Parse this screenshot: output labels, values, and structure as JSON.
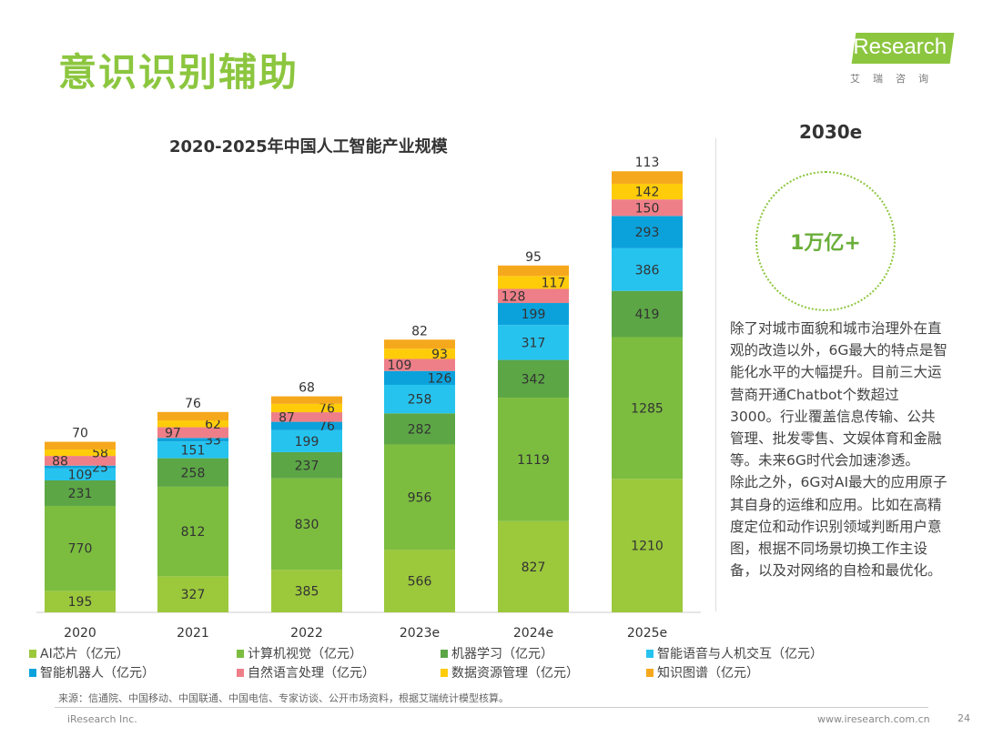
{
  "page": {
    "title": "意识识别辅助",
    "logo_text": "iResearch",
    "logo_sub": "艾瑞咨询",
    "forecast_year": "2030e",
    "forecast_value": "1万亿+",
    "paragraph": [
      "除了对城市面貌和城市治理外在直观的改造以外，6G最大的特点是智能化水平的大幅提升。目前三大运营商开通Chatbot个数超过3000。行业覆盖信息传输、公共管理、批发零售、文娱体育和金融等。未来6G时代会加速渗透。",
      "除此之外，6G对AI最大的应用原子其自身的运维和应用。比如在高精度定位和动作识别领域判断用户意图，根据不同场景切换工作主设备，以及对网络的自检和最优化。"
    ],
    "source": "来源：信通院、中国移动、中国联通、中国电信、专家访谈、公开市场资料，根据艾瑞统计模型核算。",
    "footer_left": "iResearch Inc.",
    "footer_url": "www.iresearch.com.cn",
    "page_number": "24"
  },
  "chart_data": {
    "type": "bar",
    "stacked": true,
    "title": "2020-2025年中国人工智能产业规模",
    "xlabel": "",
    "ylabel": "亿元",
    "ylim": [
      0,
      4000
    ],
    "categories": [
      "2020",
      "2021",
      "2022",
      "2023e",
      "2024e",
      "2025e"
    ],
    "legend_position": "bottom",
    "series": [
      {
        "name": "AI芯片（亿元）",
        "color": "#9cc83c",
        "values": [
          195,
          327,
          385,
          566,
          827,
          1210
        ]
      },
      {
        "name": "计算机视觉（亿元）",
        "color": "#7cbd3f",
        "values": [
          770,
          812,
          830,
          956,
          1119,
          1285
        ]
      },
      {
        "name": "机器学习（亿元）",
        "color": "#5ca646",
        "values": [
          231,
          258,
          237,
          282,
          342,
          419
        ]
      },
      {
        "name": "智能语音与人机交互（亿元）",
        "color": "#26c3ef",
        "values": [
          109,
          151,
          199,
          258,
          317,
          386
        ]
      },
      {
        "name": "智能机器人（亿元）",
        "color": "#0ba2dc",
        "values": [
          25,
          33,
          76,
          126,
          199,
          293
        ]
      },
      {
        "name": "自然语言处理（亿元）",
        "color": "#ee7f88",
        "values": [
          88,
          97,
          87,
          109,
          128,
          150
        ]
      },
      {
        "name": "数据资源管理（亿元）",
        "color": "#ffcc0a",
        "values": [
          58,
          62,
          76,
          93,
          117,
          142
        ]
      },
      {
        "name": "知识图谱（亿元）",
        "color": "#f6a81c",
        "values": [
          70,
          76,
          68,
          82,
          95,
          113
        ]
      }
    ]
  }
}
